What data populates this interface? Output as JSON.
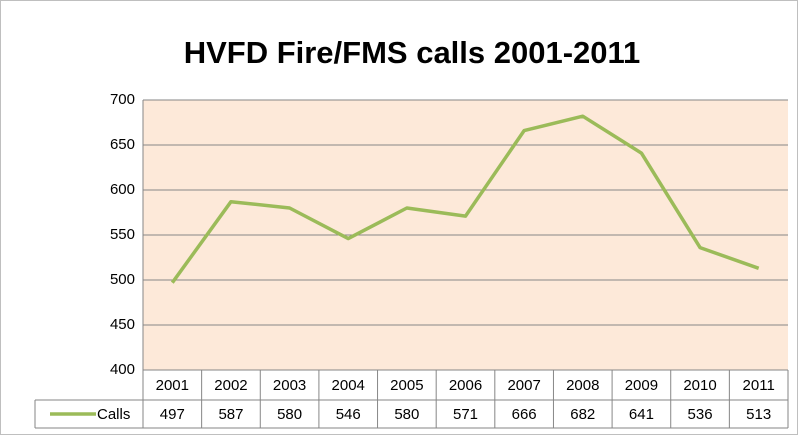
{
  "chart_data": {
    "type": "line",
    "title": "HVFD Fire/FMS calls 2001-2011",
    "categories": [
      "2001",
      "2002",
      "2003",
      "2004",
      "2005",
      "2006",
      "2007",
      "2008",
      "2009",
      "2010",
      "2011"
    ],
    "series": [
      {
        "name": "Calls",
        "color": "#9bbb59",
        "values": [
          497,
          587,
          580,
          546,
          580,
          571,
          666,
          682,
          641,
          536,
          513
        ]
      }
    ],
    "ylim": [
      400,
      700
    ],
    "yticks": [
      400,
      450,
      500,
      550,
      600,
      650,
      700
    ],
    "grid": true,
    "plot_background": "#fde9d9"
  }
}
